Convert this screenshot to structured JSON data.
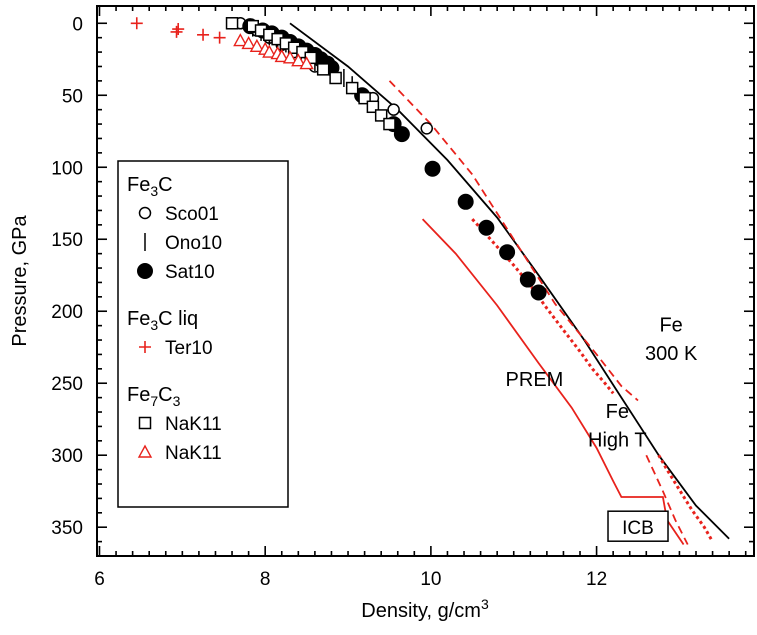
{
  "chart_data": {
    "type": "scatter",
    "xlabel": "Density, g/cm",
    "xlabel_sup": "3",
    "ylabel": "Pressure, GPa",
    "xlim": [
      5.97,
      13.9
    ],
    "ylim": [
      370,
      -12
    ],
    "x_ticks": [
      {
        "v": 6,
        "label": "6"
      },
      {
        "v": 8,
        "label": "8"
      },
      {
        "v": 10,
        "label": "10"
      },
      {
        "v": 12,
        "label": "12"
      }
    ],
    "y_ticks": [
      {
        "v": 0,
        "label": "0"
      },
      {
        "v": 50,
        "label": "50"
      },
      {
        "v": 100,
        "label": "100"
      },
      {
        "v": 150,
        "label": "150"
      },
      {
        "v": 200,
        "label": "200"
      },
      {
        "v": 250,
        "label": "250"
      },
      {
        "v": 300,
        "label": "300"
      },
      {
        "v": 350,
        "label": "350"
      }
    ],
    "colors": {
      "black": "#000000",
      "red": "#e8221c"
    },
    "legend": {
      "placement": "left",
      "groups": [
        {
          "title": "Fe",
          "title_sub": "3",
          "title_tail": "C",
          "title_sub2": "",
          "title_tail2": "",
          "entries": [
            {
              "marker": "open-circle",
              "color": "#000000",
              "label": "Sco01"
            },
            {
              "marker": "vbar",
              "color": "#000000",
              "label": "Ono10"
            },
            {
              "marker": "filled-circle",
              "color": "#000000",
              "label": "Sat10"
            }
          ]
        },
        {
          "title": "Fe",
          "title_sub": "3",
          "title_tail": "C liq",
          "title_sub2": "",
          "title_tail2": "",
          "entries": [
            {
              "marker": "plus",
              "color": "#e8221c",
              "label": "Ter10"
            }
          ]
        },
        {
          "title": "Fe",
          "title_sub": "7",
          "title_tail": "C",
          "title_sub2": "3",
          "title_tail2": "",
          "entries": [
            {
              "marker": "open-square",
              "color": "#000000",
              "label": "NaK11"
            },
            {
              "marker": "open-triangle",
              "color": "#e8221c",
              "label": "NaK11"
            }
          ]
        }
      ]
    },
    "series": [
      {
        "name": "Sco01",
        "marker": "open-circle",
        "color": "#000000",
        "points": [
          [
            7.7,
            0
          ],
          [
            7.9,
            5
          ],
          [
            8.05,
            10
          ],
          [
            8.2,
            15
          ],
          [
            8.35,
            20
          ],
          [
            8.5,
            25
          ],
          [
            8.6,
            30
          ],
          [
            9.3,
            52
          ],
          [
            9.55,
            60
          ],
          [
            9.95,
            73
          ]
        ]
      },
      {
        "name": "Ono10",
        "marker": "vbar",
        "color": "#000000",
        "points": [
          [
            7.85,
            3
          ],
          [
            7.95,
            6
          ],
          [
            8.05,
            9
          ],
          [
            8.15,
            11
          ],
          [
            8.25,
            14
          ],
          [
            8.3,
            17
          ],
          [
            8.4,
            20
          ],
          [
            8.5,
            23
          ],
          [
            8.6,
            27
          ],
          [
            8.7,
            30
          ],
          [
            8.8,
            33
          ],
          [
            8.95,
            38
          ],
          [
            9.05,
            43
          ]
        ]
      },
      {
        "name": "Sat10",
        "marker": "filled-circle",
        "color": "#000000",
        "points": [
          [
            7.82,
            2
          ],
          [
            7.97,
            5
          ],
          [
            8.08,
            7
          ],
          [
            8.2,
            10
          ],
          [
            8.3,
            13
          ],
          [
            8.4,
            16
          ],
          [
            8.5,
            19
          ],
          [
            8.6,
            22
          ],
          [
            8.67,
            25
          ],
          [
            8.75,
            28
          ],
          [
            8.8,
            31
          ],
          [
            9.17,
            50
          ],
          [
            9.55,
            70
          ],
          [
            9.65,
            77
          ],
          [
            10.02,
            101
          ],
          [
            10.42,
            124
          ],
          [
            10.67,
            142
          ],
          [
            10.92,
            159
          ],
          [
            11.17,
            178
          ],
          [
            11.3,
            187
          ]
        ]
      },
      {
        "name": "Ter10",
        "marker": "plus",
        "color": "#e8221c",
        "points": [
          [
            6.45,
            0
          ],
          [
            6.95,
            4
          ],
          [
            6.93,
            6
          ],
          [
            7.25,
            8
          ],
          [
            7.45,
            10
          ]
        ]
      },
      {
        "name": "NaK11",
        "marker": "open-square",
        "color": "#000000",
        "points": [
          [
            7.6,
            0
          ],
          [
            7.85,
            2
          ],
          [
            7.95,
            5
          ],
          [
            8.05,
            8
          ],
          [
            8.15,
            11
          ],
          [
            8.25,
            14
          ],
          [
            8.35,
            17
          ],
          [
            8.45,
            20
          ],
          [
            8.55,
            24
          ],
          [
            8.7,
            32
          ],
          [
            8.85,
            38
          ],
          [
            9.05,
            45
          ],
          [
            9.2,
            52
          ],
          [
            9.3,
            58
          ],
          [
            9.4,
            64
          ],
          [
            9.5,
            70
          ]
        ]
      },
      {
        "name": "NaK11",
        "marker": "open-triangle",
        "color": "#e8221c",
        "points": [
          [
            7.7,
            12
          ],
          [
            7.8,
            14
          ],
          [
            7.9,
            16
          ],
          [
            8.0,
            18
          ],
          [
            8.05,
            20
          ],
          [
            8.15,
            21
          ],
          [
            8.2,
            23
          ],
          [
            8.3,
            24
          ],
          [
            8.4,
            26
          ],
          [
            8.5,
            28
          ]
        ]
      }
    ],
    "curves": [
      {
        "name": "Fe 300 K",
        "color": "#000000",
        "dash": "solid",
        "points": [
          [
            8.3,
            0
          ],
          [
            9.0,
            30
          ],
          [
            9.6,
            60
          ],
          [
            10.2,
            95
          ],
          [
            10.8,
            135
          ],
          [
            11.3,
            175
          ],
          [
            11.85,
            220
          ],
          [
            12.3,
            260
          ],
          [
            12.75,
            300
          ],
          [
            13.2,
            335
          ],
          [
            13.6,
            358
          ]
        ]
      },
      {
        "name": "Fe High T",
        "color": "#e8221c",
        "dash": "dashed",
        "points": [
          [
            9.5,
            40
          ],
          [
            10.0,
            70
          ],
          [
            10.5,
            105
          ],
          [
            11.0,
            150
          ],
          [
            11.5,
            195
          ],
          [
            12.0,
            230
          ],
          [
            12.3,
            252
          ],
          [
            12.5,
            262
          ]
        ]
      },
      {
        "name": "Fe High T lower",
        "color": "#e8221c",
        "dash": "dashed",
        "points": [
          [
            12.6,
            300
          ],
          [
            12.8,
            325
          ],
          [
            12.95,
            345
          ],
          [
            13.1,
            362
          ]
        ]
      },
      {
        "name": "PREM",
        "color": "#e8221c",
        "dash": "solid",
        "points": [
          [
            9.9,
            136
          ],
          [
            10.3,
            160
          ],
          [
            10.8,
            196
          ],
          [
            11.3,
            236
          ],
          [
            11.7,
            267
          ],
          [
            12.0,
            295
          ],
          [
            12.2,
            318
          ],
          [
            12.3,
            329
          ],
          [
            12.8,
            329
          ],
          [
            12.85,
            345
          ],
          [
            13.05,
            362
          ]
        ]
      },
      {
        "name": "Fe High T data",
        "color": "#e8221c",
        "dash": "dotted",
        "points": [
          [
            10.5,
            136
          ],
          [
            10.75,
            152
          ],
          [
            11.0,
            168
          ],
          [
            11.2,
            182
          ],
          [
            11.4,
            198
          ],
          [
            11.6,
            213
          ],
          [
            11.8,
            228
          ],
          [
            11.95,
            240
          ],
          [
            12.1,
            250
          ],
          [
            12.2,
            257
          ]
        ]
      },
      {
        "name": "Fe High T data lower",
        "color": "#e8221c",
        "dash": "dotted",
        "points": [
          [
            12.75,
            300
          ],
          [
            12.85,
            310
          ],
          [
            13.0,
            324
          ],
          [
            13.15,
            338
          ],
          [
            13.3,
            350
          ],
          [
            13.4,
            360
          ]
        ]
      }
    ],
    "annotations": [
      {
        "text": "Fe",
        "x": 12.9,
        "y": 214,
        "color": "#000000"
      },
      {
        "text": "300 K",
        "x": 12.9,
        "y": 234,
        "color": "#000000"
      },
      {
        "text": "PREM",
        "x": 11.25,
        "y": 252,
        "color": "#000000"
      },
      {
        "text": "Fe",
        "x": 12.25,
        "y": 274,
        "color": "#000000"
      },
      {
        "text": "High T",
        "x": 12.25,
        "y": 294,
        "color": "#000000"
      }
    ],
    "boxed_label": {
      "text": "ICB",
      "x": 12.5,
      "y": 350
    }
  }
}
